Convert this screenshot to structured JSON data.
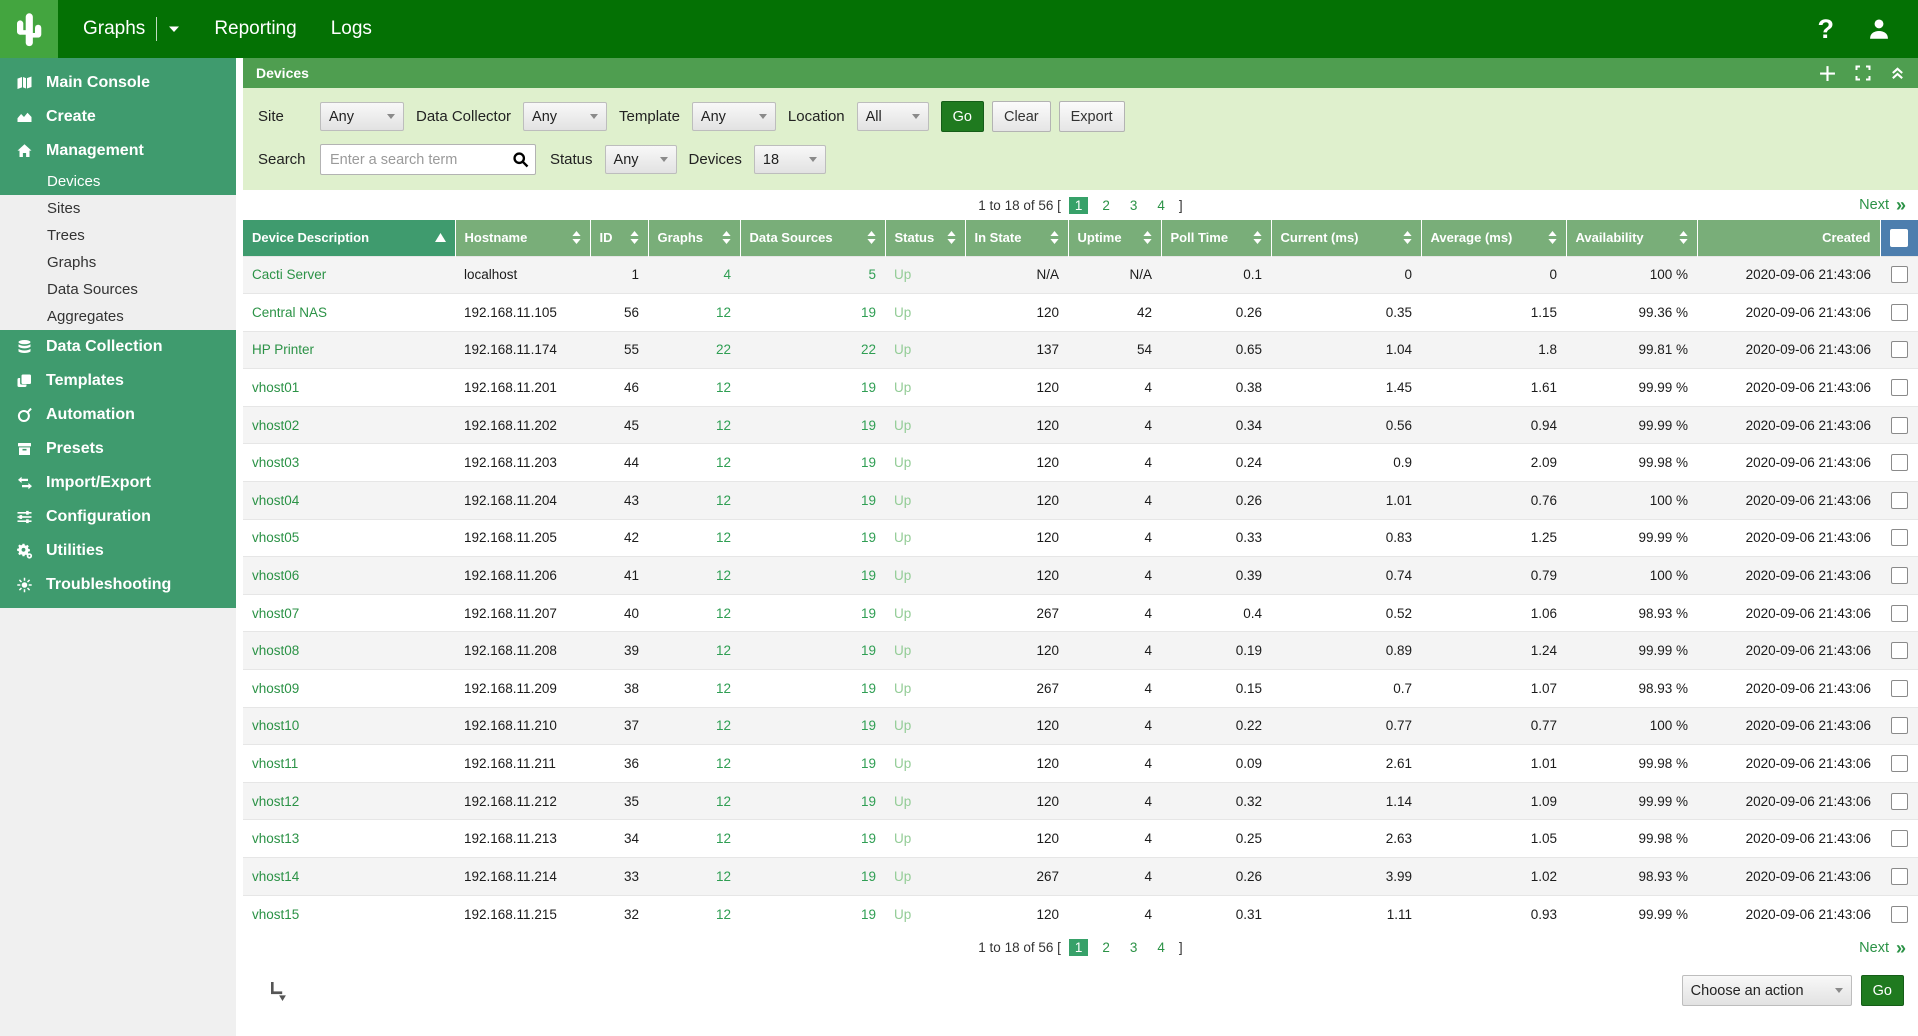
{
  "colors": {
    "topnav_green": "#047104",
    "logo_green": "#43a53f",
    "sidebar_green": "#3f9b6e",
    "panel_green": "#4f9e50",
    "table_header_green": "#79ae79",
    "sorted_column_green": "#3f9b6e",
    "checkbox_header_blue": "#4d7eae",
    "filter_bg_green": "#dff0cd",
    "link_green": "#2b9246",
    "status_up_green": "#93cc96"
  },
  "topnav": {
    "logo_icon": "cactus-logo",
    "tabs": [
      {
        "label": "Graphs",
        "has_caret": true
      },
      {
        "label": "Reporting",
        "has_caret": false
      },
      {
        "label": "Logs",
        "has_caret": false
      }
    ],
    "help_label": "?",
    "user_icon": "user-icon"
  },
  "sidebar": {
    "sections": [
      {
        "label": "Main Console",
        "icon": "map-icon"
      },
      {
        "label": "Create",
        "icon": "area-chart-icon"
      },
      {
        "label": "Management",
        "icon": "home-icon",
        "children": [
          "Devices",
          "Sites",
          "Trees",
          "Graphs",
          "Data Sources",
          "Aggregates"
        ],
        "active_child": "Devices"
      },
      {
        "label": "Data Collection",
        "icon": "database-icon"
      },
      {
        "label": "Templates",
        "icon": "copy-icon"
      },
      {
        "label": "Automation",
        "icon": "circular-arrow-icon"
      },
      {
        "label": "Presets",
        "icon": "archive-box-icon"
      },
      {
        "label": "Import/Export",
        "icon": "swap-arrows-icon"
      },
      {
        "label": "Configuration",
        "icon": "sliders-icon"
      },
      {
        "label": "Utilities",
        "icon": "gears-icon"
      },
      {
        "label": "Troubleshooting",
        "icon": "sun-rays-icon"
      }
    ]
  },
  "panel": {
    "title": "Devices",
    "icons": [
      "plus-icon",
      "fullscreen-icon",
      "collapse-icon"
    ]
  },
  "filters": {
    "site_label": "Site",
    "site_value": "Any",
    "collector_label": "Data Collector",
    "collector_value": "Any",
    "template_label": "Template",
    "template_value": "Any",
    "location_label": "Location",
    "location_value": "All",
    "go_label": "Go",
    "clear_label": "Clear",
    "export_label": "Export",
    "search_label": "Search",
    "search_placeholder": "Enter a search term",
    "status_label": "Status",
    "status_value": "Any",
    "devices_label": "Devices",
    "devices_value": "18"
  },
  "pagination": {
    "summary_prefix": "1 to 18 of 56 [",
    "pages": [
      "1",
      "2",
      "3",
      "4"
    ],
    "current_page": "1",
    "summary_suffix": "]",
    "next_label": "Next"
  },
  "table": {
    "columns": [
      {
        "label": "Device Description",
        "sorted": "asc",
        "sortable": true
      },
      {
        "label": "Hostname",
        "sortable": true
      },
      {
        "label": "ID",
        "sortable": true
      },
      {
        "label": "Graphs",
        "sortable": true
      },
      {
        "label": "Data Sources",
        "sortable": true
      },
      {
        "label": "Status",
        "sortable": true
      },
      {
        "label": "In State",
        "sortable": true
      },
      {
        "label": "Uptime",
        "sortable": true
      },
      {
        "label": "Poll Time",
        "sortable": true
      },
      {
        "label": "Current (ms)",
        "sortable": true
      },
      {
        "label": "Average (ms)",
        "sortable": true
      },
      {
        "label": "Availability",
        "sortable": true
      },
      {
        "label": "Created",
        "sortable": false,
        "align": "right"
      }
    ],
    "rows": [
      [
        "Cacti Server",
        "localhost",
        "1",
        "4",
        "5",
        "Up",
        "N/A",
        "N/A",
        "0.1",
        "0",
        "0",
        "100 %",
        "2020-09-06 21:43:06"
      ],
      [
        "Central NAS",
        "192.168.11.105",
        "56",
        "12",
        "19",
        "Up",
        "120",
        "42",
        "0.26",
        "0.35",
        "1.15",
        "99.36 %",
        "2020-09-06 21:43:06"
      ],
      [
        "HP Printer",
        "192.168.11.174",
        "55",
        "22",
        "22",
        "Up",
        "137",
        "54",
        "0.65",
        "1.04",
        "1.8",
        "99.81 %",
        "2020-09-06 21:43:06"
      ],
      [
        "vhost01",
        "192.168.11.201",
        "46",
        "12",
        "19",
        "Up",
        "120",
        "4",
        "0.38",
        "1.45",
        "1.61",
        "99.99 %",
        "2020-09-06 21:43:06"
      ],
      [
        "vhost02",
        "192.168.11.202",
        "45",
        "12",
        "19",
        "Up",
        "120",
        "4",
        "0.34",
        "0.56",
        "0.94",
        "99.99 %",
        "2020-09-06 21:43:06"
      ],
      [
        "vhost03",
        "192.168.11.203",
        "44",
        "12",
        "19",
        "Up",
        "120",
        "4",
        "0.24",
        "0.9",
        "2.09",
        "99.98 %",
        "2020-09-06 21:43:06"
      ],
      [
        "vhost04",
        "192.168.11.204",
        "43",
        "12",
        "19",
        "Up",
        "120",
        "4",
        "0.26",
        "1.01",
        "0.76",
        "100 %",
        "2020-09-06 21:43:06"
      ],
      [
        "vhost05",
        "192.168.11.205",
        "42",
        "12",
        "19",
        "Up",
        "120",
        "4",
        "0.33",
        "0.83",
        "1.25",
        "99.99 %",
        "2020-09-06 21:43:06"
      ],
      [
        "vhost06",
        "192.168.11.206",
        "41",
        "12",
        "19",
        "Up",
        "120",
        "4",
        "0.39",
        "0.74",
        "0.79",
        "100 %",
        "2020-09-06 21:43:06"
      ],
      [
        "vhost07",
        "192.168.11.207",
        "40",
        "12",
        "19",
        "Up",
        "267",
        "4",
        "0.4",
        "0.52",
        "1.06",
        "98.93 %",
        "2020-09-06 21:43:06"
      ],
      [
        "vhost08",
        "192.168.11.208",
        "39",
        "12",
        "19",
        "Up",
        "120",
        "4",
        "0.19",
        "0.89",
        "1.24",
        "99.99 %",
        "2020-09-06 21:43:06"
      ],
      [
        "vhost09",
        "192.168.11.209",
        "38",
        "12",
        "19",
        "Up",
        "267",
        "4",
        "0.15",
        "0.7",
        "1.07",
        "98.93 %",
        "2020-09-06 21:43:06"
      ],
      [
        "vhost10",
        "192.168.11.210",
        "37",
        "12",
        "19",
        "Up",
        "120",
        "4",
        "0.22",
        "0.77",
        "0.77",
        "100 %",
        "2020-09-06 21:43:06"
      ],
      [
        "vhost11",
        "192.168.11.211",
        "36",
        "12",
        "19",
        "Up",
        "120",
        "4",
        "0.09",
        "2.61",
        "1.01",
        "99.98 %",
        "2020-09-06 21:43:06"
      ],
      [
        "vhost12",
        "192.168.11.212",
        "35",
        "12",
        "19",
        "Up",
        "120",
        "4",
        "0.32",
        "1.14",
        "1.09",
        "99.99 %",
        "2020-09-06 21:43:06"
      ],
      [
        "vhost13",
        "192.168.11.213",
        "34",
        "12",
        "19",
        "Up",
        "120",
        "4",
        "0.25",
        "2.63",
        "1.05",
        "99.98 %",
        "2020-09-06 21:43:06"
      ],
      [
        "vhost14",
        "192.168.11.214",
        "33",
        "12",
        "19",
        "Up",
        "267",
        "4",
        "0.26",
        "3.99",
        "1.02",
        "98.93 %",
        "2020-09-06 21:43:06"
      ],
      [
        "vhost15",
        "192.168.11.215",
        "32",
        "12",
        "19",
        "Up",
        "120",
        "4",
        "0.31",
        "1.11",
        "0.93",
        "99.99 %",
        "2020-09-06 21:43:06"
      ]
    ]
  },
  "footer": {
    "return_icon": "return-arrow-icon"
  },
  "actions": {
    "choose_label": "Choose an action",
    "go_label": "Go"
  }
}
